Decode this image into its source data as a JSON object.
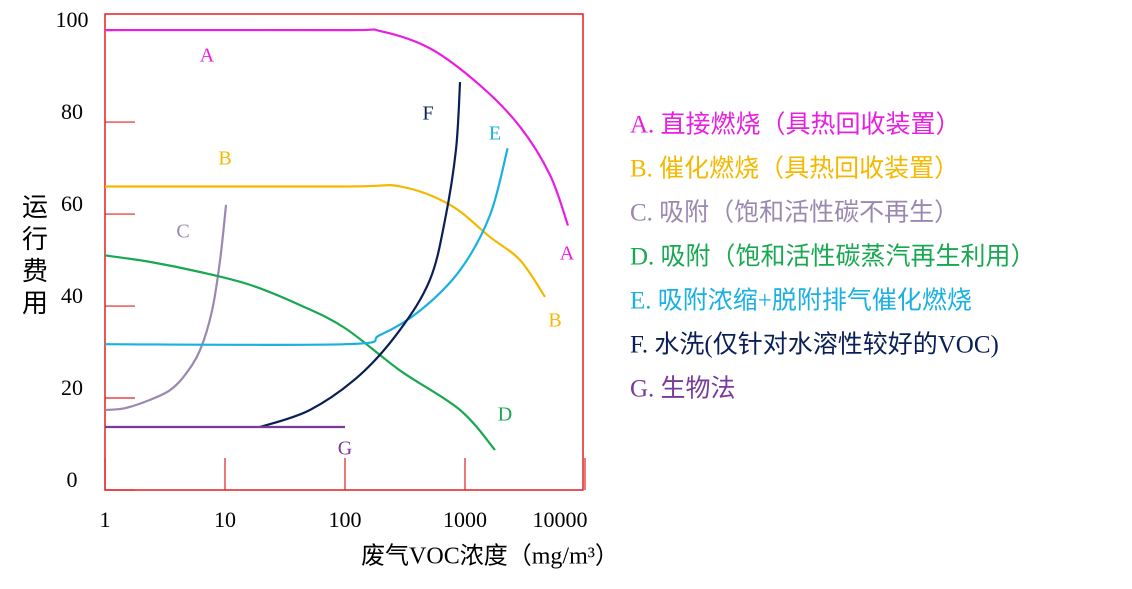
{
  "chart_data": {
    "type": "line",
    "xlabel": "废气VOC浓度（mg/m³）",
    "ylabel": "运行费用",
    "xscale": "log",
    "xlim": [
      1,
      10000
    ],
    "xticks": [
      1,
      10,
      100,
      1000,
      10000
    ],
    "ylim": [
      0,
      103.5
    ],
    "yticks": [
      0,
      20,
      40,
      60,
      80,
      100
    ],
    "frame_color": "#e02020",
    "series": [
      {
        "name": "A. 直接燃烧（具热回收装置）",
        "label": "A",
        "color": "#e81ee0",
        "x": [
          1,
          100,
          196,
          513,
          1334,
          2870,
          5110,
          7220
        ],
        "values": [
          100,
          100,
          99.8,
          96,
          88,
          79,
          68.5,
          57.5
        ]
      },
      {
        "name": "B. 催化燃烧（具热回收装置）",
        "label": "B",
        "color": "#f5b800",
        "x": [
          1,
          100,
          287,
          750,
          1617,
          2870,
          4640
        ],
        "values": [
          66,
          66,
          66,
          62,
          55,
          50,
          42
        ]
      },
      {
        "name": "C. 吸附（饱和活性碳不再生）",
        "label": "C",
        "color": "#9a88b0",
        "x": [
          1,
          1.47,
          2.37,
          3.48,
          4.64,
          6.19,
          7.8,
          9.1,
          10.2
        ],
        "values": [
          17.4,
          17.8,
          19.6,
          21.7,
          25,
          30.4,
          39,
          50,
          62
        ]
      },
      {
        "name": "D. 吸附（饱和活性碳蒸汽再生利用）",
        "label": "D",
        "color": "#18a850",
        "x": [
          1,
          2.37,
          6.19,
          16.2,
          42.2,
          100,
          287,
          909,
          1778
        ],
        "values": [
          51,
          49.6,
          47.4,
          44.6,
          40.2,
          35.2,
          26,
          17.4,
          8.7
        ]
      },
      {
        "name": "E. 吸附浓缩+脱附排气催化燃烧",
        "label": "E",
        "color": "#1ab0e0",
        "x": [
          1,
          100,
          196,
          422,
          909,
          1617,
          2265
        ],
        "values": [
          31.7,
          31.7,
          33.7,
          39,
          47.8,
          59.8,
          74.3
        ]
      },
      {
        "name": "F. 水洗(仅针对水溶性较好的VOC)",
        "label": "F",
        "color": "#0a1f55",
        "x": [
          19.6,
          51,
          133,
          287,
          510,
          681,
          841,
          909
        ],
        "values": [
          13.7,
          17.4,
          25,
          34.8,
          45.7,
          58.7,
          74,
          88.7
        ]
      },
      {
        "name": "G. 生物法",
        "label": "G",
        "color": "#7a3a9a",
        "x": [
          1,
          100
        ],
        "values": [
          13.7,
          13.7
        ]
      }
    ]
  }
}
